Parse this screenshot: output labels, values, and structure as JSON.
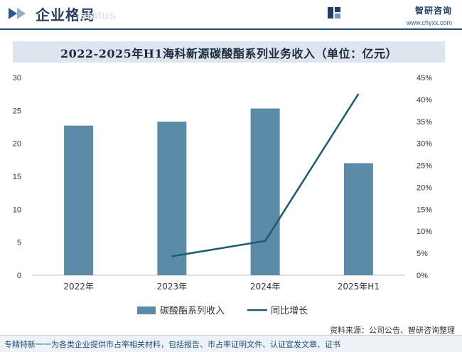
{
  "header": {
    "title": "企业格局",
    "watermark_text": "istatus",
    "brand_name": "智研咨询",
    "brand_url": "www.chyxx.com"
  },
  "chart_title": "2022-2025年H1海科新源碳酸酯系列业务收入（单位：亿元）",
  "chart_data": {
    "type": "bar",
    "title": "2022-2025年H1海科新源碳酸酯系列业务收入（单位：亿元）",
    "categories": [
      "2022年",
      "2023年",
      "2024年",
      "2025年H1"
    ],
    "series": [
      {
        "name": "碳酸酯系列收入",
        "type": "bar",
        "axis": "left",
        "values": [
          22.7,
          23.3,
          25.3,
          17.0
        ],
        "color": "#5b8ba6"
      },
      {
        "name": "同比增长",
        "type": "line",
        "axis": "right",
        "values": [
          null,
          0.043,
          0.078,
          0.413
        ],
        "color": "#1b5a73"
      }
    ],
    "yticks_left": [
      "0",
      "5",
      "10",
      "15",
      "20",
      "25",
      "30"
    ],
    "ylim_left": [
      0,
      30
    ],
    "yticks_right": [
      "0%",
      "5%",
      "10%",
      "15%",
      "20%",
      "25%",
      "30%",
      "35%",
      "40%",
      "45%"
    ],
    "ylim_right": [
      0,
      0.45
    ],
    "legend_position": "bottom",
    "grid": false
  },
  "footer": {
    "source": "资料来源：公司公告、智研咨询整理",
    "note": "专精特新一一为各类企业提供市占率相关材料，包括报告、市占率证明文件、认证宣发文章、证书"
  }
}
